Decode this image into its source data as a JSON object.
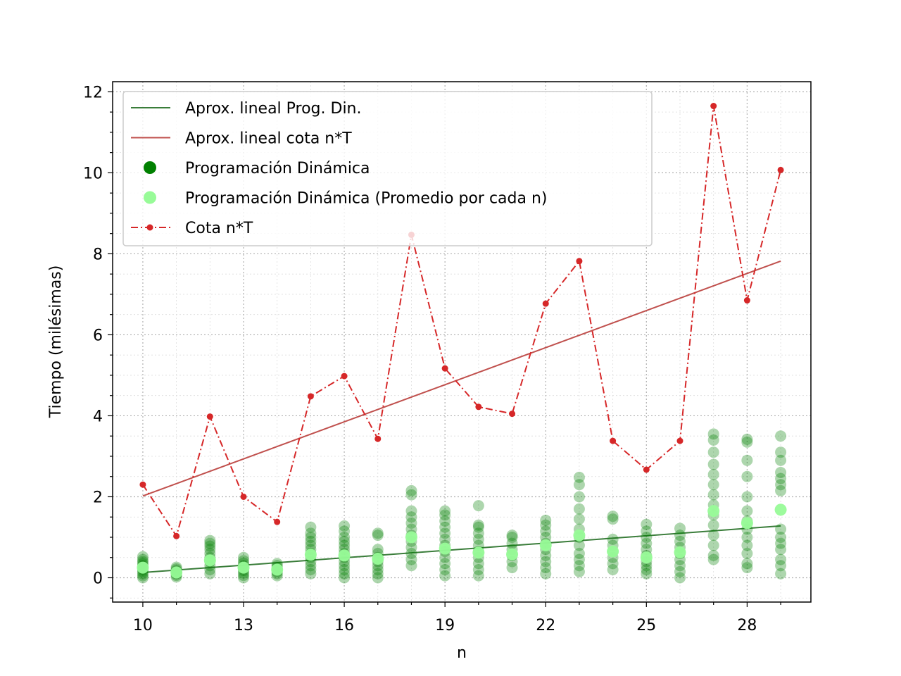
{
  "chart_data": {
    "type": "scatter",
    "title": "",
    "xlabel": "n",
    "ylabel": "Tiempo (milésimas)",
    "xlim": [
      9.1,
      29.9
    ],
    "ylim": [
      -0.6,
      12.25
    ],
    "xticks": [
      10,
      13,
      16,
      19,
      22,
      25,
      28
    ],
    "yticks": [
      0,
      2,
      4,
      6,
      8,
      10,
      12
    ],
    "grid": true,
    "legend_position": "upper-left",
    "colors": {
      "dyn": "#008000",
      "avg": "#98fb98",
      "bound": "#d62728",
      "fit_dyn": "#3a7d3a",
      "fit_bound": "#c0504d"
    },
    "legend": [
      {
        "label": "Aprox. lineal Prog. Din.",
        "kind": "line",
        "color": "#3a7d3a"
      },
      {
        "label": "Aprox. lineal cota n*T",
        "kind": "line",
        "color": "#c0504d"
      },
      {
        "label": "Programación Dinámica",
        "kind": "dot",
        "color": "#008000"
      },
      {
        "label": "Programación Dinámica (Promedio por cada n)",
        "kind": "dot",
        "color": "#98fb98"
      },
      {
        "label": "Cota n*T",
        "kind": "dashdot",
        "color": "#d62728"
      }
    ],
    "series": [
      {
        "name": "Programación Dinámica",
        "style": "scatter",
        "groups": [
          {
            "x": 10,
            "y": [
              0.0,
              0.05,
              0.1,
              0.15,
              0.2,
              0.25,
              0.3,
              0.35,
              0.4,
              0.45,
              0.52
            ]
          },
          {
            "x": 11,
            "y": [
              0.02,
              0.06,
              0.1,
              0.14,
              0.18,
              0.22,
              0.26
            ]
          },
          {
            "x": 12,
            "y": [
              0.1,
              0.2,
              0.3,
              0.4,
              0.5,
              0.6,
              0.7,
              0.78,
              0.85,
              0.92
            ]
          },
          {
            "x": 13,
            "y": [
              0.0,
              0.06,
              0.12,
              0.18,
              0.24,
              0.3,
              0.36,
              0.42,
              0.5
            ]
          },
          {
            "x": 14,
            "y": [
              0.05,
              0.1,
              0.15,
              0.2,
              0.25,
              0.3,
              0.35
            ]
          },
          {
            "x": 15,
            "y": [
              0.1,
              0.2,
              0.3,
              0.4,
              0.5,
              0.6,
              0.7,
              0.8,
              0.9,
              1.0,
              1.1,
              1.25
            ]
          },
          {
            "x": 16,
            "y": [
              0.0,
              0.1,
              0.2,
              0.3,
              0.4,
              0.5,
              0.6,
              0.7,
              0.8,
              0.9,
              1.0,
              1.15,
              1.28
            ]
          },
          {
            "x": 17,
            "y": [
              0.0,
              0.1,
              0.2,
              0.3,
              0.4,
              0.5,
              0.6,
              0.7,
              1.05,
              1.1
            ]
          },
          {
            "x": 18,
            "y": [
              0.3,
              0.45,
              0.6,
              0.75,
              0.9,
              1.05,
              1.2,
              1.35,
              1.5,
              1.65,
              2.05,
              2.15
            ]
          },
          {
            "x": 19,
            "y": [
              0.05,
              0.2,
              0.35,
              0.5,
              0.65,
              0.8,
              0.95,
              1.1,
              1.25,
              1.4,
              1.55,
              1.65
            ]
          },
          {
            "x": 20,
            "y": [
              0.05,
              0.2,
              0.35,
              0.5,
              0.65,
              0.8,
              0.95,
              1.1,
              1.25,
              1.3,
              1.78
            ]
          },
          {
            "x": 21,
            "y": [
              0.25,
              0.4,
              0.55,
              0.7,
              0.85,
              1.0,
              1.05
            ]
          },
          {
            "x": 22,
            "y": [
              0.1,
              0.25,
              0.4,
              0.55,
              0.7,
              0.85,
              1.0,
              1.15,
              1.3,
              1.42
            ]
          },
          {
            "x": 23,
            "y": [
              0.15,
              0.3,
              0.45,
              0.6,
              0.8,
              1.0,
              1.2,
              1.45,
              1.7,
              2.0,
              2.3,
              2.48
            ]
          },
          {
            "x": 24,
            "y": [
              0.2,
              0.35,
              0.5,
              0.65,
              0.8,
              0.95,
              1.45,
              1.52
            ]
          },
          {
            "x": 25,
            "y": [
              0.1,
              0.2,
              0.3,
              0.4,
              0.55,
              0.7,
              0.85,
              1.0,
              1.15,
              1.32
            ]
          },
          {
            "x": 26,
            "y": [
              0.0,
              0.15,
              0.3,
              0.45,
              0.6,
              0.75,
              0.9,
              1.05,
              1.22
            ]
          },
          {
            "x": 27,
            "y": [
              0.45,
              0.55,
              0.8,
              1.05,
              1.3,
              1.55,
              1.8,
              2.05,
              2.3,
              2.55,
              2.8,
              3.1,
              3.4,
              3.55
            ]
          },
          {
            "x": 28,
            "y": [
              0.25,
              0.35,
              0.6,
              0.8,
              1.0,
              1.2,
              1.4,
              1.65,
              2.0,
              2.5,
              2.9,
              3.35,
              3.42
            ]
          },
          {
            "x": 29,
            "y": [
              0.1,
              0.3,
              0.45,
              0.7,
              0.85,
              1.0,
              1.2,
              2.15,
              2.3,
              2.45,
              2.6,
              2.9,
              3.1,
              3.5
            ]
          }
        ]
      },
      {
        "name": "Programación Dinámica (Promedio por cada n)",
        "style": "scatter",
        "x": [
          10,
          11,
          12,
          13,
          14,
          15,
          16,
          17,
          18,
          19,
          20,
          21,
          22,
          23,
          24,
          25,
          26,
          27,
          28,
          29
        ],
        "y": [
          0.25,
          0.13,
          0.43,
          0.25,
          0.2,
          0.57,
          0.55,
          0.47,
          1.0,
          0.72,
          0.62,
          0.58,
          0.8,
          1.05,
          0.65,
          0.5,
          0.63,
          1.65,
          1.35,
          1.68
        ]
      },
      {
        "name": "Cota n*T",
        "style": "dashdot-markers",
        "x": [
          10,
          11,
          12,
          13,
          14,
          15,
          16,
          17,
          18,
          19,
          20,
          21,
          22,
          23,
          24,
          25,
          26,
          27,
          28,
          29
        ],
        "y": [
          2.3,
          1.03,
          3.98,
          2.0,
          1.38,
          4.48,
          4.98,
          3.43,
          8.47,
          5.17,
          4.22,
          4.05,
          6.77,
          7.82,
          3.38,
          2.67,
          3.38,
          11.65,
          6.85,
          10.07
        ]
      },
      {
        "name": "Aprox. lineal Prog. Din.",
        "style": "line",
        "x": [
          10,
          29
        ],
        "y": [
          0.13,
          1.28
        ]
      },
      {
        "name": "Aprox. lineal cota n*T",
        "style": "line",
        "x": [
          10,
          29
        ],
        "y": [
          2.02,
          7.82
        ]
      }
    ]
  }
}
